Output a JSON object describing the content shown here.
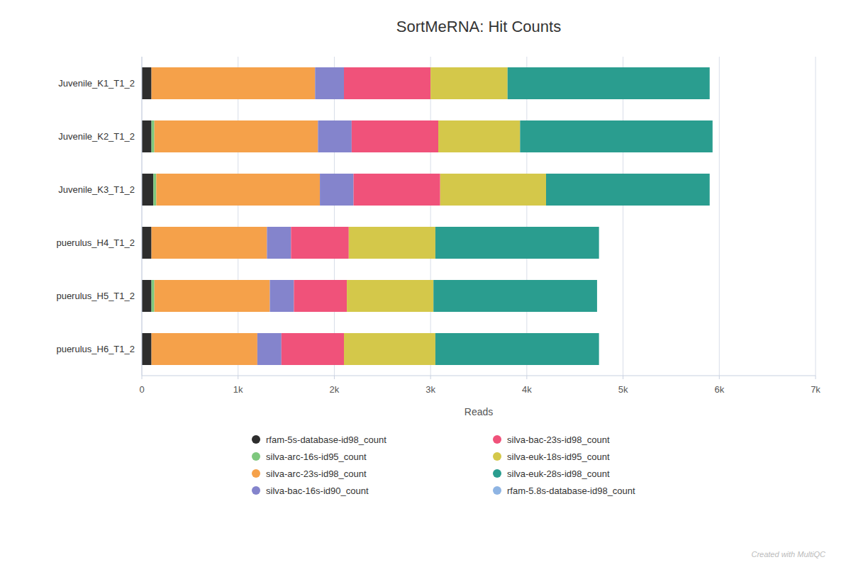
{
  "chart_data": {
    "type": "bar",
    "orientation": "horizontal",
    "stacked": true,
    "title": "SortMeRNA: Hit Counts",
    "x_label": "Reads",
    "categories": [
      "Juvenile_K1_T1_2",
      "Juvenile_K2_T1_2",
      "Juvenile_K3_T1_2",
      "puerulus_H4_T1_2",
      "puerulus_H5_T1_2",
      "puerulus_H6_T1_2"
    ],
    "series": [
      {
        "name": "rfam-5s-database-id98_count",
        "color": "#2d2d2d",
        "values": [
          100,
          100,
          120,
          100,
          100,
          100
        ]
      },
      {
        "name": "silva-arc-16s-id95_count",
        "color": "#7ec87e",
        "values": [
          0,
          30,
          30,
          0,
          30,
          0
        ]
      },
      {
        "name": "silva-arc-23s-id98_count",
        "color": "#f5a14a",
        "values": [
          1700,
          1700,
          1700,
          1200,
          1200,
          1100
        ]
      },
      {
        "name": "silva-bac-16s-id90_count",
        "color": "#8484cc",
        "values": [
          300,
          350,
          350,
          250,
          250,
          250
        ]
      },
      {
        "name": "silva-bac-23s-id98_count",
        "color": "#f0527a",
        "values": [
          900,
          900,
          900,
          600,
          550,
          650
        ]
      },
      {
        "name": "silva-euk-18s-id95_count",
        "color": "#d4c84a",
        "values": [
          800,
          850,
          1100,
          900,
          900,
          950
        ]
      },
      {
        "name": "silva-euk-28s-id98_count",
        "color": "#2a9d8f",
        "values": [
          2100,
          2000,
          1700,
          1700,
          1700,
          1700
        ]
      },
      {
        "name": "rfam-5.8s-database-id98_count",
        "color": "#8eb4e3",
        "values": [
          0,
          0,
          0,
          0,
          0,
          0
        ]
      }
    ],
    "xlim": [
      0,
      7000
    ],
    "xticks": [
      0,
      {
        "value": 1000,
        "label": "1k"
      },
      {
        "value": 2000,
        "label": "2k"
      },
      {
        "value": 3000,
        "label": "3k"
      },
      {
        "value": 4000,
        "label": "4k"
      },
      {
        "value": 5000,
        "label": "5k"
      },
      {
        "value": 6000,
        "label": "6k"
      },
      {
        "value": 7000,
        "label": "7k"
      }
    ],
    "grid": true,
    "legend": "bottom",
    "annotations": [
      "Created with MultiQC"
    ]
  }
}
